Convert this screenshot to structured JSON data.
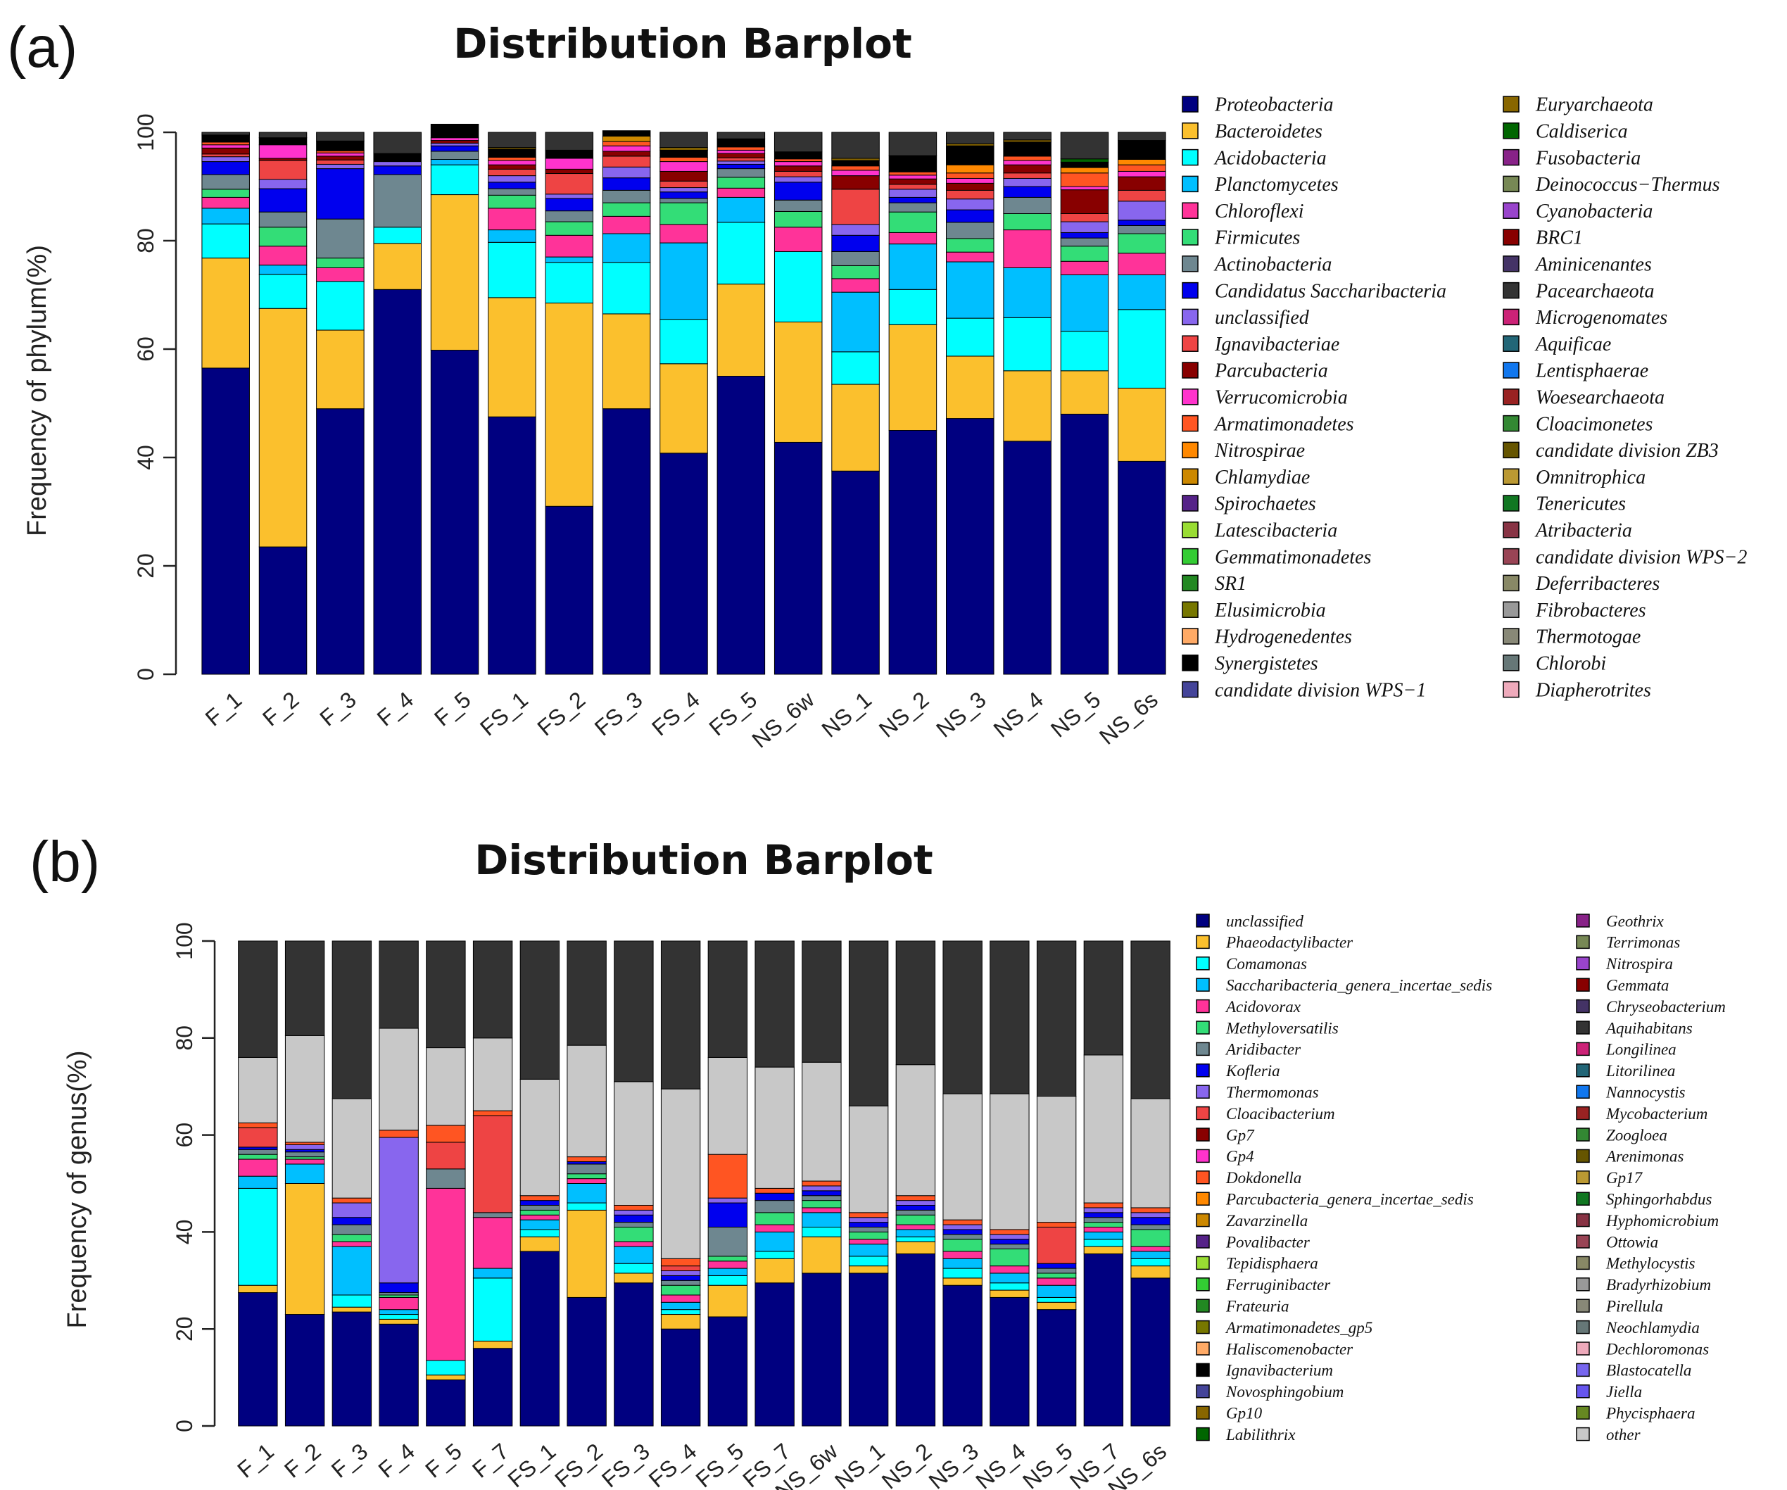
{
  "chart_data": [
    {
      "panel_label": "(a)",
      "type": "bar",
      "stacked": true,
      "title": "Distribution Barplot",
      "ylabel": "Frequency of phylum(%)",
      "xlabel": "",
      "ylim": [
        0,
        100
      ],
      "yticks": [
        "0",
        "20",
        "40",
        "60",
        "80",
        "100"
      ],
      "legend_position": "right",
      "categories": [
        "F_1",
        "F_2",
        "F_3",
        "F_4",
        "F_5",
        "FS_1",
        "FS_2",
        "FS_3",
        "FS_4",
        "FS_5",
        "NS_6w",
        "NS_1",
        "NS_2",
        "NS_3",
        "NS_4",
        "NS_5",
        "NS_6s"
      ],
      "series": [
        {
          "name": "Proteobacteria",
          "color": "#000080",
          "values": [
            56.5,
            23.5,
            49,
            71,
            59.8,
            47.5,
            31,
            49,
            40.8,
            55,
            42.8,
            37.5,
            45,
            47.2,
            43,
            48,
            39.3
          ]
        },
        {
          "name": "Bacteroidetes",
          "color": "#FBC02D",
          "values": [
            20.3,
            44,
            14.5,
            8.5,
            28.7,
            22,
            37.5,
            17.5,
            16.5,
            17,
            22.2,
            16,
            19.5,
            11.5,
            13,
            8,
            13.5
          ]
        },
        {
          "name": "Acidobacteria",
          "color": "#00FFFF",
          "values": [
            6.3,
            6.3,
            9,
            3,
            5.5,
            10.2,
            7.5,
            9.5,
            8.2,
            11.4,
            13,
            6,
            6.5,
            7,
            9.8,
            7.3,
            14.5
          ]
        },
        {
          "name": "Planctomycetes",
          "color": "#00BFFF",
          "values": [
            2.9,
            1.7,
            0,
            0,
            1,
            2.3,
            1,
            5.3,
            14.1,
            4.6,
            0,
            11,
            8.4,
            10.4,
            9.2,
            10.4,
            6.4
          ]
        },
        {
          "name": "Chloroflexi",
          "color": "#FF3399",
          "values": [
            2,
            3.5,
            2.5,
            0,
            0,
            4,
            4,
            3.2,
            3.4,
            1.7,
            4.5,
            2.5,
            2.1,
            1.8,
            7,
            2.5,
            4
          ]
        },
        {
          "name": "Firmicutes",
          "color": "#33DD77",
          "values": [
            1.5,
            3.5,
            1.8,
            0,
            0,
            2.4,
            2.5,
            2.5,
            4,
            2,
            2.9,
            2.4,
            3.8,
            2.5,
            3,
            2.8,
            3.6
          ]
        },
        {
          "name": "Actinobacteria",
          "color": "#6E8790",
          "values": [
            2.7,
            2.8,
            7.2,
            9.7,
            1.5,
            1.2,
            2,
            2.3,
            0.8,
            1.6,
            2.1,
            2.6,
            1.7,
            3,
            3,
            1.5,
            1.5
          ]
        },
        {
          "name": "Candidatus Saccharibacteria",
          "color": "#0000EE",
          "values": [
            2.4,
            4.3,
            9.3,
            1.6,
            1,
            1.2,
            2.3,
            2.3,
            1.2,
            0.8,
            3.3,
            3,
            1,
            2.3,
            2,
            1,
            1
          ]
        },
        {
          "name": "unclassified",
          "color": "#8866EE",
          "values": [
            0.9,
            1.7,
            0.8,
            0.8,
            0.5,
            1.2,
            0.8,
            2,
            0.8,
            0.6,
            1,
            2,
            1.5,
            2,
            1.5,
            2,
            3.5
          ]
        },
        {
          "name": "Ignavibacteriae",
          "color": "#EE4444",
          "values": [
            0.5,
            3.5,
            0.8,
            0,
            0,
            1.2,
            3.8,
            2,
            1.2,
            0.6,
            1,
            6.5,
            0.9,
            1.6,
            1,
            1.5,
            2
          ]
        },
        {
          "name": "Parcubacteria",
          "color": "#880000",
          "values": [
            1.1,
            0.4,
            0.7,
            0,
            0.5,
            0.8,
            0.8,
            0.9,
            1.8,
            0.8,
            1,
            2.5,
            1,
            1.3,
            1.5,
            4.4,
            2.5
          ]
        },
        {
          "name": "Verrucomicrobia",
          "color": "#FF33CC",
          "values": [
            0.6,
            2.5,
            0.6,
            0,
            0.5,
            0.8,
            2,
            1,
            1.8,
            0.6,
            0.8,
            1,
            0.7,
            0.9,
            0.8,
            0.6,
            1
          ]
        },
        {
          "name": "Armatimonadetes",
          "color": "#FF5522",
          "values": [
            0.5,
            0,
            0.4,
            0,
            0,
            0.6,
            0,
            0.8,
            0.8,
            0.6,
            0.5,
            0.8,
            0.6,
            1,
            0.8,
            2.5,
            1.2
          ]
        },
        {
          "name": "Nitrospirae",
          "color": "#FF8800",
          "values": [
            0,
            0,
            0,
            0,
            0,
            0,
            0,
            0,
            0,
            0,
            0,
            0,
            0,
            1.5,
            0,
            1,
            1
          ]
        },
        {
          "name": "Chlamydiae",
          "color": "#CC8800",
          "values": [
            0,
            0,
            0,
            0,
            0,
            0,
            0,
            1,
            0,
            0,
            0,
            0,
            0,
            0,
            0,
            0,
            0
          ]
        },
        {
          "name": "Synergistetes",
          "color": "#000000",
          "values": [
            1.3,
            1.3,
            1.8,
            1.5,
            2.5,
            1.5,
            1.5,
            1,
            1.3,
            1.5,
            1.3,
            1,
            3,
            3.5,
            2.6,
            1,
            3.5
          ]
        },
        {
          "name": "Euryarchaeota",
          "color": "#886600",
          "values": [
            0,
            0,
            0,
            0,
            0,
            0.3,
            0,
            0,
            0.5,
            0,
            0,
            0.4,
            0,
            0.4,
            0.4,
            0,
            0
          ]
        },
        {
          "name": "Caldiserica",
          "color": "#006600",
          "values": [
            0,
            0,
            0,
            0,
            0,
            0,
            0,
            0,
            0,
            0,
            0,
            0,
            0,
            0,
            0,
            0.6,
            0
          ]
        }
      ],
      "legend_entries": [
        "Proteobacteria",
        "Bacteroidetes",
        "Acidobacteria",
        "Planctomycetes",
        "Chloroflexi",
        "Firmicutes",
        "Actinobacteria",
        "Candidatus Saccharibacteria",
        "unclassified",
        "Ignavibacteriae",
        "Parcubacteria",
        "Verrucomicrobia",
        "Armatimonadetes",
        "Nitrospirae",
        "Chlamydiae",
        "Spirochaetes",
        "Latescibacteria",
        "Gemmatimonadetes",
        "SR1",
        "Elusimicrobia",
        "Hydrogenedentes",
        "Synergistetes",
        "candidate division WPS−1",
        "Euryarchaeota",
        "Caldiserica",
        "Fusobacteria",
        "Deinococcus−Thermus",
        "Cyanobacteria",
        "BRC1",
        "Aminicenantes",
        "Pacearchaeota",
        "Microgenomates",
        "Aquificae",
        "Lentisphaerae",
        "Woesearchaeota",
        "Cloacimonetes",
        "candidate division ZB3",
        "Omnitrophica",
        "Tenericutes",
        "Atribacteria",
        "candidate division WPS−2",
        "Deferribacteres",
        "Fibrobacteres",
        "Thermotogae",
        "Chlorobi",
        "Diapherotrites"
      ],
      "legend_colors": [
        "#000080",
        "#FBC02D",
        "#00FFFF",
        "#00BFFF",
        "#FF3399",
        "#33DD77",
        "#6E8790",
        "#0000EE",
        "#8866EE",
        "#EE4444",
        "#880000",
        "#FF33CC",
        "#FF5522",
        "#FF8800",
        "#CC8800",
        "#552288",
        "#99DD33",
        "#33CC33",
        "#228822",
        "#777700",
        "#FFAA66",
        "#000000",
        "#444499",
        "#886600",
        "#006600",
        "#882288",
        "#778855",
        "#9944CC",
        "#880000",
        "#443366",
        "#333333",
        "#CC2277",
        "#226677",
        "#1177EE",
        "#992222",
        "#338833",
        "#665500",
        "#BB9933",
        "#117722",
        "#883344",
        "#994455",
        "#888866",
        "#999999",
        "#888877",
        "#667777",
        "#EEAABB"
      ]
    },
    {
      "panel_label": "(b)",
      "type": "bar",
      "stacked": true,
      "title": "Distribution Barplot",
      "ylabel": "Frequency of genus(%)",
      "xlabel": "",
      "ylim": [
        0,
        100
      ],
      "yticks": [
        "0",
        "20",
        "40",
        "60",
        "80",
        "100"
      ],
      "legend_position": "right",
      "categories": [
        "F_1",
        "F_2",
        "F_3",
        "F_4",
        "F_5",
        "F_7",
        "FS_1",
        "FS_2",
        "FS_3",
        "FS_4",
        "FS_5",
        "FS_7",
        "NS_6w",
        "NS_1",
        "NS_2",
        "NS_3",
        "NS_4",
        "NS_5",
        "NS_7",
        "NS_6s"
      ],
      "series": [
        {
          "name": "unclassified",
          "color": "#000080",
          "values": [
            27.5,
            23,
            23.5,
            21,
            9.5,
            16,
            36,
            26.5,
            29.5,
            20,
            22.5,
            29.5,
            31.5,
            31.5,
            35.5,
            29,
            26.5,
            24,
            35.5,
            30.5
          ]
        },
        {
          "name": "Phaeodactylibacter",
          "color": "#FBC02D",
          "values": [
            1.5,
            27,
            1,
            1,
            1,
            1.5,
            3,
            18,
            2,
            3,
            6.5,
            5,
            7.5,
            1.5,
            2.5,
            1.5,
            1.5,
            1.5,
            1.5,
            2.5
          ]
        },
        {
          "name": "Comamonas",
          "color": "#00FFFF",
          "values": [
            20,
            0,
            2.5,
            1,
            3,
            13,
            1.5,
            1.5,
            2,
            1,
            2,
            1.5,
            2,
            2,
            1,
            2,
            1.5,
            1,
            1.5,
            1.5
          ]
        },
        {
          "name": "Saccharibacteria_genera_incertae_sedis",
          "color": "#00BFFF",
          "values": [
            2.5,
            4,
            10,
            1,
            0,
            2,
            2,
            4,
            3.5,
            1.5,
            1.5,
            4,
            3,
            2.5,
            1.5,
            2,
            2,
            2.5,
            1.5,
            1.5
          ]
        },
        {
          "name": "Acidovorax",
          "color": "#FF3399",
          "values": [
            3.5,
            1,
            1,
            2.5,
            35.5,
            10.5,
            1,
            1,
            1,
            1.5,
            1.5,
            1.5,
            1,
            1,
            1,
            1.5,
            1.5,
            1.5,
            1,
            1
          ]
        },
        {
          "name": "Methyloversatilis",
          "color": "#33DD77",
          "values": [
            1,
            0.5,
            1.5,
            0.5,
            0,
            0,
            1,
            1,
            3,
            2,
            1,
            2.5,
            1.5,
            1.5,
            2,
            2.5,
            3.5,
            1,
            1,
            3.5
          ]
        },
        {
          "name": "Aridibacter",
          "color": "#6E8790",
          "values": [
            1,
            1,
            2,
            0.5,
            4,
            1,
            1,
            2,
            1,
            1,
            6,
            2.5,
            1,
            1,
            1,
            1,
            1,
            1,
            1,
            1
          ]
        },
        {
          "name": "Kofleria",
          "color": "#0000EE",
          "values": [
            0.5,
            0.5,
            1.5,
            2,
            0,
            0,
            1,
            0.5,
            1.5,
            1,
            5,
            1.5,
            1,
            1,
            1,
            1,
            1,
            1,
            1,
            1.5
          ]
        },
        {
          "name": "Thermomonas",
          "color": "#8866EE",
          "values": [
            0,
            1,
            3,
            30,
            0,
            0,
            0,
            0,
            1,
            1,
            1,
            0,
            1,
            1,
            1,
            1,
            1,
            0,
            1,
            1
          ]
        },
        {
          "name": "Cloacibacterium",
          "color": "#EE4444",
          "values": [
            4,
            0,
            0,
            0,
            5.5,
            20,
            0,
            0,
            0,
            1,
            0,
            0,
            0,
            0,
            0,
            0,
            0,
            7.5,
            0,
            0
          ]
        },
        {
          "name": "Dokdonella",
          "color": "#FF5522",
          "values": [
            1,
            0.5,
            1,
            1.5,
            3.5,
            1,
            1,
            1,
            1,
            1.5,
            9,
            1,
            1,
            1,
            1,
            1,
            1,
            1,
            1,
            1
          ]
        },
        {
          "name": "other",
          "color": "#C8C8C8",
          "values": [
            13.5,
            22,
            20.5,
            21,
            16,
            15,
            24,
            23,
            25.5,
            35,
            20,
            25,
            24.5,
            22,
            27,
            26,
            28,
            26,
            30.5,
            22.5
          ]
        }
      ],
      "legend_entries": [
        "unclassified",
        "Phaeodactylibacter",
        "Comamonas",
        "Saccharibacteria_genera_incertae_sedis",
        "Acidovorax",
        "Methyloversatilis",
        "Aridibacter",
        "Kofleria",
        "Thermomonas",
        "Cloacibacterium",
        "Gp7",
        "Gp4",
        "Dokdonella",
        "Parcubacteria_genera_incertae_sedis",
        "Zavarzinella",
        "Povalibacter",
        "Tepidisphaera",
        "Ferruginibacter",
        "Frateuria",
        "Armatimonadetes_gp5",
        "Haliscomenobacter",
        "Ignavibacterium",
        "Novosphingobium",
        "Gp10",
        "Labilithrix",
        "Geothrix",
        "Terrimonas",
        "Nitrospira",
        "Gemmata",
        "Chryseobacterium",
        "Aquihabitans",
        "Longilinea",
        "Litorilinea",
        "Nannocystis",
        "Mycobacterium",
        "Zoogloea",
        "Arenimonas",
        "Gp17",
        "Sphingorhabdus",
        "Hyphomicrobium",
        "Ottowia",
        "Methylocystis",
        "Bradyrhizobium",
        "Pirellula",
        "Neochlamydia",
        "Dechloromonas",
        "Blastocatella",
        "Jiella",
        "Phycisphaera",
        "other"
      ],
      "legend_colors": [
        "#000080",
        "#FBC02D",
        "#00FFFF",
        "#00BFFF",
        "#FF3399",
        "#33DD77",
        "#6E8790",
        "#0000EE",
        "#8866EE",
        "#EE4444",
        "#880000",
        "#FF33CC",
        "#FF5522",
        "#FF8800",
        "#CC8800",
        "#552288",
        "#99DD33",
        "#33CC33",
        "#228822",
        "#777700",
        "#FFAA66",
        "#000000",
        "#444499",
        "#886600",
        "#006600",
        "#882288",
        "#778855",
        "#9944CC",
        "#880000",
        "#443366",
        "#333333",
        "#CC2277",
        "#226677",
        "#1177EE",
        "#992222",
        "#338833",
        "#665500",
        "#BB9933",
        "#117722",
        "#883344",
        "#994455",
        "#888866",
        "#999999",
        "#888877",
        "#667777",
        "#EEAABB",
        "#7766EE",
        "#6655EE",
        "#668822",
        "#C8C8C8"
      ]
    }
  ]
}
